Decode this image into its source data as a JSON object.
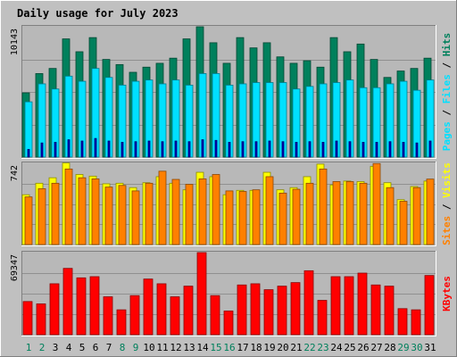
{
  "chart_data": {
    "type": "bar",
    "title": "Daily usage for July 2023",
    "categories": [
      "1",
      "2",
      "3",
      "4",
      "5",
      "6",
      "7",
      "8",
      "9",
      "10",
      "11",
      "12",
      "13",
      "14",
      "15",
      "16",
      "17",
      "18",
      "19",
      "20",
      "21",
      "22",
      "23",
      "24",
      "25",
      "26",
      "27",
      "28",
      "29",
      "30",
      "31"
    ],
    "weekend_days": [
      "1",
      "2",
      "8",
      "9",
      "15",
      "16",
      "22",
      "23",
      "29",
      "30"
    ],
    "panels": [
      {
        "id": "hits_files_pages",
        "ymax": 10143,
        "ymax_label": "10143",
        "series": [
          {
            "name": "Hits",
            "color": "#00805c",
            "values": [
              5000,
              6500,
              6900,
              9200,
              8200,
              9300,
              7600,
              7200,
              6600,
              7000,
              7300,
              7700,
              9200,
              10143,
              8900,
              7300,
              9300,
              8500,
              8900,
              7800,
              7300,
              7500,
              7000,
              9300,
              8200,
              8800,
              7600,
              6200,
              6700,
              6900,
              7700
            ]
          },
          {
            "name": "Files",
            "color": "#00e0ff",
            "values": [
              4300,
              5700,
              5300,
              6300,
              5900,
              6900,
              6200,
              5600,
              5900,
              6000,
              5700,
              6000,
              5600,
              6500,
              6500,
              5600,
              5700,
              5800,
              5800,
              5800,
              5300,
              5500,
              5700,
              5800,
              6000,
              5400,
              5400,
              5700,
              5900,
              5200,
              6000
            ]
          },
          {
            "name": "Pages",
            "color": "#0000c0",
            "values": [
              600,
              1100,
              1150,
              1350,
              1250,
              1450,
              1250,
              1150,
              1200,
              1250,
              1200,
              1250,
              1200,
              1350,
              1300,
              1150,
              1200,
              1200,
              1250,
              1200,
              1150,
              1200,
              1150,
              1250,
              1200,
              1150,
              1150,
              1200,
              1150,
              1100,
              1250
            ]
          }
        ],
        "right_label": [
          "Pages",
          " / ",
          "Files",
          " / ",
          "Hits"
        ]
      },
      {
        "id": "visits_sites",
        "ymax": 742,
        "ymax_label": "742",
        "series": [
          {
            "name": "Visits",
            "color": "#ffff00",
            "values": [
              455,
              560,
              610,
              745,
              640,
              625,
              555,
              560,
              520,
              565,
              620,
              560,
              500,
              660,
              620,
              455,
              495,
              495,
              660,
              500,
              520,
              620,
              735,
              545,
              580,
              575,
              715,
              565,
              410,
              530,
              580
            ]
          },
          {
            "name": "Sites",
            "color": "#ff8000",
            "values": [
              435,
              510,
              560,
              690,
              610,
              600,
              525,
              540,
              490,
              560,
              670,
              595,
              550,
              600,
              640,
              490,
              485,
              500,
              620,
              470,
              505,
              560,
              690,
              575,
              575,
              560,
              740,
              520,
              395,
              520,
              598
            ]
          }
        ],
        "right_label": [
          "Sites",
          " / ",
          "Visits"
        ]
      },
      {
        "id": "kbytes",
        "ymax": 69347,
        "ymax_label": "69347",
        "series": [
          {
            "name": "KBytes",
            "color": "#ff0000",
            "values": [
              28000,
              26000,
              43000,
              56000,
              48000,
              49000,
              32000,
              21000,
              33000,
              47000,
              43000,
              32000,
              41000,
              69347,
              33000,
              20000,
              42000,
              43000,
              38000,
              41000,
              44000,
              54000,
              29000,
              49000,
              49000,
              52000,
              42000,
              41000,
              22000,
              21000,
              50000
            ]
          }
        ],
        "right_label": [
          "KBytes"
        ]
      }
    ],
    "colors": {
      "background": "#c0c0c0",
      "panel": "#b8b8b8",
      "title": "#0000ff",
      "weekday": "#000000",
      "weekend": "#00805c",
      "pages_label": "#00e0ff",
      "files_label": "#00e0ff",
      "hits_label": "#00805c",
      "sites_label": "#ff8000",
      "visits_label": "#ffff00",
      "kbytes_label": "#ff0000"
    }
  }
}
